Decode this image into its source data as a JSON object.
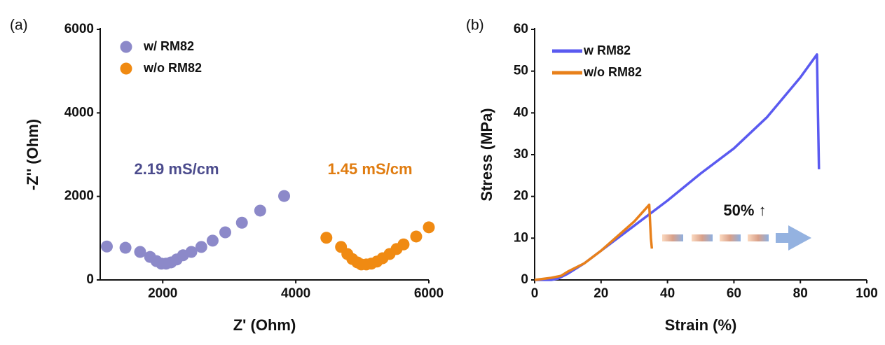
{
  "chart_data": [
    {
      "type": "scatter",
      "panel_label": "(a)",
      "x_label": "Z' (Ohm)",
      "y_label": "-Z'' (Ohm)",
      "xlim": [
        1060,
        6000
      ],
      "xticks": [
        2000,
        4000,
        6000
      ],
      "ylim": [
        0,
        6000
      ],
      "yticks": [
        0,
        2000,
        4000,
        6000
      ],
      "legend": "upper left",
      "series": [
        {
          "name": "w/ RM82",
          "color": "#8c89c9",
          "x": [
            1160,
            1440,
            1660,
            1810,
            1905,
            1980,
            2050,
            2125,
            2210,
            2305,
            2430,
            2580,
            2750,
            2940,
            3190,
            3465,
            3825
          ],
          "values": [
            800,
            770,
            670,
            550,
            450,
            390,
            390,
            420,
            490,
            590,
            670,
            790,
            940,
            1140,
            1370,
            1660,
            2010
          ]
        },
        {
          "name": "w/o RM82",
          "color": "#f08a12",
          "x": [
            4460,
            4680,
            4775,
            4850,
            4925,
            4985,
            5060,
            5135,
            5220,
            5305,
            5410,
            5515,
            5620,
            5810,
            6000
          ],
          "values": [
            1010,
            790,
            620,
            500,
            420,
            370,
            370,
            390,
            440,
            520,
            620,
            740,
            850,
            1040,
            1260
          ]
        }
      ],
      "annotations": [
        {
          "text": "2.19 mS/cm",
          "color": "#4b4b8c"
        },
        {
          "text": "1.45 mS/cm",
          "color": "#e07c10"
        }
      ]
    },
    {
      "type": "line",
      "panel_label": "(b)",
      "x_label": "Strain (%)",
      "y_label": "Stress (MPa)",
      "xlim": [
        0,
        100
      ],
      "xticks": [
        0,
        20,
        40,
        60,
        80,
        100
      ],
      "ylim": [
        0,
        60
      ],
      "yticks": [
        0,
        10,
        20,
        30,
        40,
        50,
        60
      ],
      "legend": "upper left",
      "series": [
        {
          "name": "w RM82",
          "color": "#5a5af0",
          "x": [
            0,
            5,
            7,
            10,
            15,
            20,
            30,
            40,
            50,
            60,
            70,
            80,
            85,
            85.3,
            85.6
          ],
          "values": [
            0,
            0,
            0.3,
            1.5,
            4,
            7,
            13,
            19,
            25.5,
            31.5,
            39,
            48.5,
            54,
            40,
            26.5
          ]
        },
        {
          "name": "w/o RM82",
          "color": "#e8801a",
          "x": [
            0,
            5,
            8,
            10,
            15,
            20,
            25,
            30,
            34.5,
            35,
            35.3
          ],
          "values": [
            0,
            0.5,
            1,
            2,
            4,
            7,
            10.5,
            14,
            18,
            10,
            7.5
          ]
        }
      ],
      "annotations": [
        {
          "text": "50% ↑",
          "color": "#111111"
        }
      ]
    }
  ]
}
